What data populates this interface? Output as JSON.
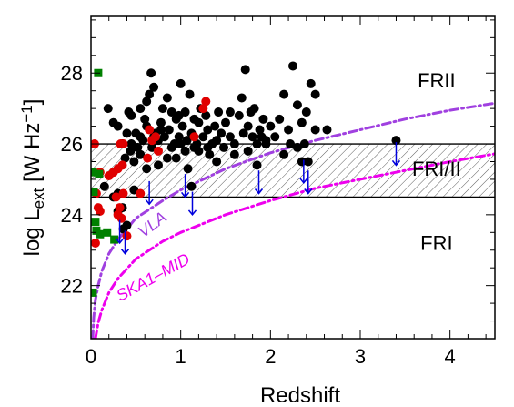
{
  "chart_data": {
    "type": "scatter",
    "title": "",
    "xlabel": "Redshift",
    "ylabel": "log L_ext [W Hz^-1]",
    "xlim": [
      0,
      4.5
    ],
    "ylim": [
      20.5,
      29.6
    ],
    "xticks": [
      0,
      1,
      2,
      3,
      4
    ],
    "yticks": [
      22,
      24,
      26,
      28
    ],
    "grid": false,
    "hlines": [
      24.5,
      26.0
    ],
    "hatched_band": [
      24.5,
      26.0
    ],
    "region_labels": [
      {
        "text": "FRII",
        "x": 3.85,
        "y": 27.6
      },
      {
        "text": "FRI/II",
        "x": 3.85,
        "y": 25.1
      },
      {
        "text": "FRI",
        "x": 3.85,
        "y": 23.0
      }
    ],
    "curve_labels": [
      {
        "text": "VLA",
        "color": "#a040e0",
        "x": 0.72,
        "y": 23.6,
        "angle": -37
      },
      {
        "text": "SKA1–MID",
        "color": "#ee00ee",
        "x": 0.72,
        "y": 22.1,
        "angle": -29
      }
    ],
    "curves": [
      {
        "name": "VLA",
        "color": "#a040e0",
        "x": [
          0.02,
          0.03,
          0.05,
          0.08,
          0.12,
          0.2,
          0.3,
          0.5,
          0.8,
          1.0,
          1.5,
          2.0,
          2.5,
          3.0,
          3.5,
          4.0,
          4.5
        ],
        "y": [
          20.5,
          21.1,
          21.6,
          22.0,
          22.4,
          22.9,
          23.3,
          23.9,
          24.4,
          24.7,
          25.3,
          25.75,
          26.1,
          26.4,
          26.7,
          26.95,
          27.15
        ]
      },
      {
        "name": "SKA1-MID",
        "color": "#ee00ee",
        "x": [
          0.05,
          0.08,
          0.12,
          0.2,
          0.3,
          0.5,
          0.8,
          1.0,
          1.5,
          2.0,
          2.5,
          3.0,
          3.5,
          4.0,
          4.5
        ],
        "y": [
          20.5,
          20.95,
          21.3,
          21.8,
          22.2,
          22.75,
          23.25,
          23.5,
          24.0,
          24.4,
          24.75,
          25.0,
          25.25,
          25.5,
          25.72
        ]
      }
    ],
    "series": [
      {
        "color": "#000000",
        "marker": "circle",
        "points": [
          [
            0.19,
            27.0
          ],
          [
            0.3,
            26.5
          ],
          [
            0.42,
            26.9
          ],
          [
            0.45,
            26.0
          ],
          [
            0.5,
            26.3
          ],
          [
            0.55,
            26.2
          ],
          [
            0.58,
            26.1
          ],
          [
            0.6,
            26.7
          ],
          [
            0.62,
            27.2
          ],
          [
            0.65,
            27.4
          ],
          [
            0.67,
            28.0
          ],
          [
            0.7,
            27.6
          ],
          [
            0.72,
            26.3
          ],
          [
            0.75,
            26.1
          ],
          [
            0.78,
            26.6
          ],
          [
            0.8,
            27.0
          ],
          [
            0.82,
            26.2
          ],
          [
            0.85,
            27.3
          ],
          [
            0.87,
            26.4
          ],
          [
            0.9,
            26.9
          ],
          [
            0.93,
            26.0
          ],
          [
            0.95,
            26.7
          ],
          [
            0.98,
            26.2
          ],
          [
            1.0,
            27.7
          ],
          [
            1.02,
            26.5
          ],
          [
            1.05,
            26.9
          ],
          [
            1.07,
            26.1
          ],
          [
            1.1,
            27.4
          ],
          [
            1.12,
            26.3
          ],
          [
            1.15,
            26.7
          ],
          [
            1.18,
            26.0
          ],
          [
            1.2,
            26.6
          ],
          [
            1.22,
            27.0
          ],
          [
            1.25,
            26.2
          ],
          [
            1.28,
            26.8
          ],
          [
            1.3,
            26.4
          ],
          [
            1.32,
            25.7
          ],
          [
            1.35,
            26.0
          ],
          [
            1.38,
            26.5
          ],
          [
            1.4,
            26.1
          ],
          [
            1.42,
            26.9
          ],
          [
            1.45,
            26.3
          ],
          [
            1.48,
            25.9
          ],
          [
            1.5,
            26.6
          ],
          [
            1.55,
            26.2
          ],
          [
            1.6,
            26.0
          ],
          [
            1.65,
            26.8
          ],
          [
            1.68,
            27.3
          ],
          [
            1.7,
            26.3
          ],
          [
            1.72,
            28.1
          ],
          [
            1.75,
            26.5
          ],
          [
            1.78,
            26.9
          ],
          [
            1.8,
            26.2
          ],
          [
            1.82,
            27.0
          ],
          [
            1.85,
            26.0
          ],
          [
            1.88,
            26.4
          ],
          [
            1.9,
            26.2
          ],
          [
            1.92,
            26.7
          ],
          [
            1.95,
            26.0
          ],
          [
            2.0,
            26.5
          ],
          [
            2.05,
            26.2
          ],
          [
            2.1,
            26.7
          ],
          [
            2.15,
            27.4
          ],
          [
            2.2,
            26.4
          ],
          [
            2.22,
            26.0
          ],
          [
            2.25,
            28.2
          ],
          [
            2.3,
            27.1
          ],
          [
            2.35,
            26.6
          ],
          [
            2.38,
            26.0
          ],
          [
            2.4,
            26.9
          ],
          [
            2.45,
            27.7
          ],
          [
            2.5,
            26.4
          ],
          [
            2.63,
            26.4
          ],
          [
            2.5,
            27.4
          ],
          [
            0.85,
            25.6
          ],
          [
            0.9,
            25.9
          ],
          [
            0.95,
            25.6
          ],
          [
            1.05,
            25.8
          ],
          [
            1.15,
            25.9
          ],
          [
            1.6,
            25.7
          ],
          [
            1.75,
            25.8
          ],
          [
            2.15,
            25.7
          ],
          [
            0.35,
            26.0
          ],
          [
            0.38,
            25.6
          ],
          [
            0.4,
            26.3
          ],
          [
            0.48,
            25.5
          ],
          [
            0.52,
            25.9
          ],
          [
            0.25,
            24.5
          ],
          [
            0.3,
            24.6
          ],
          [
            0.4,
            23.7
          ],
          [
            0.48,
            24.7
          ],
          [
            0.62,
            25.3
          ],
          [
            0.68,
            25.9
          ],
          [
            0.75,
            25.4
          ],
          [
            0.45,
            26.8
          ],
          [
            0.55,
            27.0
          ],
          [
            0.25,
            26.6
          ],
          [
            0.7,
            26.2
          ],
          [
            0.35,
            24.2
          ],
          [
            0.55,
            25.7
          ],
          [
            1.0,
            26.0
          ],
          [
            1.08,
            25.3
          ],
          [
            1.12,
            24.8
          ],
          [
            1.3,
            25.9
          ],
          [
            1.85,
            25.4
          ],
          [
            2.35,
            25.5
          ],
          [
            2.42,
            25.5
          ],
          [
            3.4,
            26.1
          ],
          [
            0.3,
            24.1
          ],
          [
            0.36,
            23.6
          ],
          [
            0.15,
            24.8
          ],
          [
            1.2,
            25.8
          ],
          [
            1.4,
            25.5
          ],
          [
            1.55,
            26.9
          ],
          [
            1.95,
            26.1
          ],
          [
            2.3,
            25.9
          ],
          [
            0.78,
            26.4
          ],
          [
            0.98,
            26.8
          ],
          [
            0.62,
            26.5
          ],
          [
            0.44,
            25.8
          ]
        ]
      },
      {
        "color": "#e00000",
        "marker": "circle",
        "points": [
          [
            0.04,
            26.0
          ],
          [
            0.06,
            24.6
          ],
          [
            0.08,
            24.2
          ],
          [
            0.1,
            24.1
          ],
          [
            0.05,
            23.2
          ],
          [
            0.2,
            25.1
          ],
          [
            0.25,
            25.2
          ],
          [
            0.3,
            25.3
          ],
          [
            0.35,
            25.4
          ],
          [
            0.28,
            24.5
          ],
          [
            0.32,
            24.2
          ],
          [
            0.36,
            24.6
          ],
          [
            0.3,
            24.0
          ],
          [
            0.34,
            23.9
          ],
          [
            0.4,
            23.4
          ],
          [
            0.55,
            24.6
          ],
          [
            0.63,
            25.6
          ],
          [
            0.65,
            26.4
          ],
          [
            0.68,
            26.1
          ],
          [
            0.72,
            26.2
          ],
          [
            0.75,
            25.8
          ],
          [
            0.33,
            26.0
          ],
          [
            0.36,
            26.0
          ],
          [
            1.15,
            26.2
          ],
          [
            1.25,
            27.0
          ],
          [
            1.28,
            27.2
          ],
          [
            0.1,
            25.2
          ]
        ]
      },
      {
        "color": "#008000",
        "marker": "square",
        "points": [
          [
            0.08,
            28.0
          ],
          [
            0.09,
            25.15
          ],
          [
            0.03,
            24.65
          ],
          [
            0.05,
            23.8
          ],
          [
            0.06,
            23.55
          ],
          [
            0.1,
            23.45
          ],
          [
            0.18,
            23.5
          ],
          [
            0.26,
            23.3
          ],
          [
            0.02,
            21.8
          ],
          [
            0.02,
            25.2
          ]
        ]
      }
    ],
    "upper_limits": {
      "color": "#0000dd",
      "points": [
        [
          0.65,
          24.6
        ],
        [
          0.32,
          23.5
        ],
        [
          1.05,
          24.8
        ],
        [
          1.13,
          24.3
        ],
        [
          1.87,
          24.9
        ],
        [
          2.37,
          25.2
        ],
        [
          2.42,
          24.9
        ],
        [
          3.4,
          25.7
        ],
        [
          0.38,
          23.2
        ]
      ]
    }
  }
}
